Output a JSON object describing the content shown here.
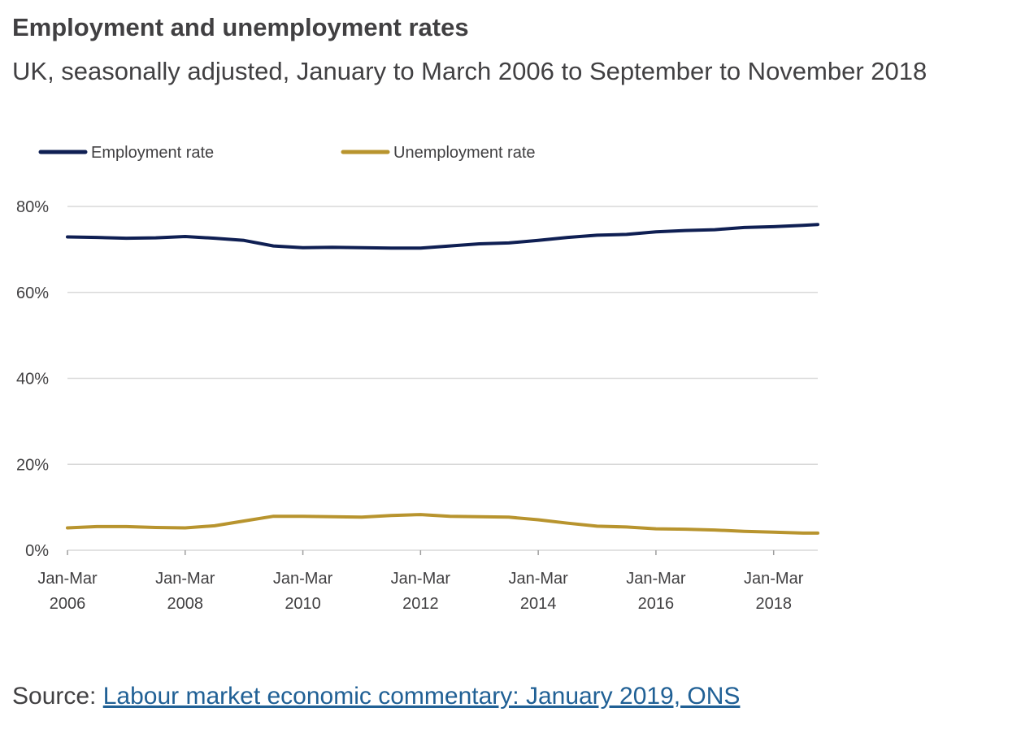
{
  "header": {
    "title": "Employment and unemployment rates",
    "subtitle": "UK, seasonally adjusted, January to March 2006 to September to November 2018"
  },
  "source": {
    "label": "Source: ",
    "link_text": "Labour market economic commentary: January 2019, ONS"
  },
  "colors": {
    "employment": "#0f1f53",
    "unemployment": "#b8942e",
    "grid": "#d9d9d9",
    "text": "#414042",
    "link": "#206095"
  },
  "chart_data": {
    "type": "line",
    "ylim": [
      0,
      80
    ],
    "y_ticks": [
      0,
      20,
      40,
      60,
      80
    ],
    "y_tick_labels": [
      "0%",
      "20%",
      "40%",
      "60%",
      "80%"
    ],
    "x_tick_labels": [
      [
        "Jan-Mar",
        "2006"
      ],
      [
        "Jan-Mar",
        "2008"
      ],
      [
        "Jan-Mar",
        "2010"
      ],
      [
        "Jan-Mar",
        "2012"
      ],
      [
        "Jan-Mar",
        "2014"
      ],
      [
        "Jan-Mar",
        "2016"
      ],
      [
        "Jan-Mar",
        "2018"
      ]
    ],
    "x_tick_years": [
      2006,
      2008,
      2010,
      2012,
      2014,
      2016,
      2018
    ],
    "x_range": [
      2006.0,
      2018.75
    ],
    "legend_position": "top-left",
    "grid": true,
    "series": [
      {
        "name": "Employment rate",
        "x": [
          2006.0,
          2006.5,
          2007.0,
          2007.5,
          2008.0,
          2008.5,
          2009.0,
          2009.5,
          2010.0,
          2010.5,
          2011.0,
          2011.5,
          2012.0,
          2012.5,
          2013.0,
          2013.5,
          2014.0,
          2014.5,
          2015.0,
          2015.5,
          2016.0,
          2016.5,
          2017.0,
          2017.5,
          2018.0,
          2018.5,
          2018.75
        ],
        "values": [
          72.9,
          72.8,
          72.6,
          72.7,
          73.0,
          72.6,
          72.1,
          70.8,
          70.4,
          70.5,
          70.4,
          70.3,
          70.3,
          70.8,
          71.3,
          71.5,
          72.1,
          72.8,
          73.3,
          73.5,
          74.1,
          74.4,
          74.6,
          75.1,
          75.3,
          75.6,
          75.8
        ]
      },
      {
        "name": "Unemployment rate",
        "x": [
          2006.0,
          2006.5,
          2007.0,
          2007.5,
          2008.0,
          2008.5,
          2009.0,
          2009.5,
          2010.0,
          2010.5,
          2011.0,
          2011.5,
          2012.0,
          2012.5,
          2013.0,
          2013.5,
          2014.0,
          2014.5,
          2015.0,
          2015.5,
          2016.0,
          2016.5,
          2017.0,
          2017.5,
          2018.0,
          2018.5,
          2018.75
        ],
        "values": [
          5.2,
          5.5,
          5.5,
          5.3,
          5.2,
          5.7,
          6.8,
          7.9,
          7.9,
          7.8,
          7.7,
          8.1,
          8.3,
          7.9,
          7.8,
          7.7,
          7.1,
          6.3,
          5.6,
          5.4,
          5.0,
          4.9,
          4.7,
          4.4,
          4.2,
          4.0,
          4.0
        ]
      }
    ]
  }
}
